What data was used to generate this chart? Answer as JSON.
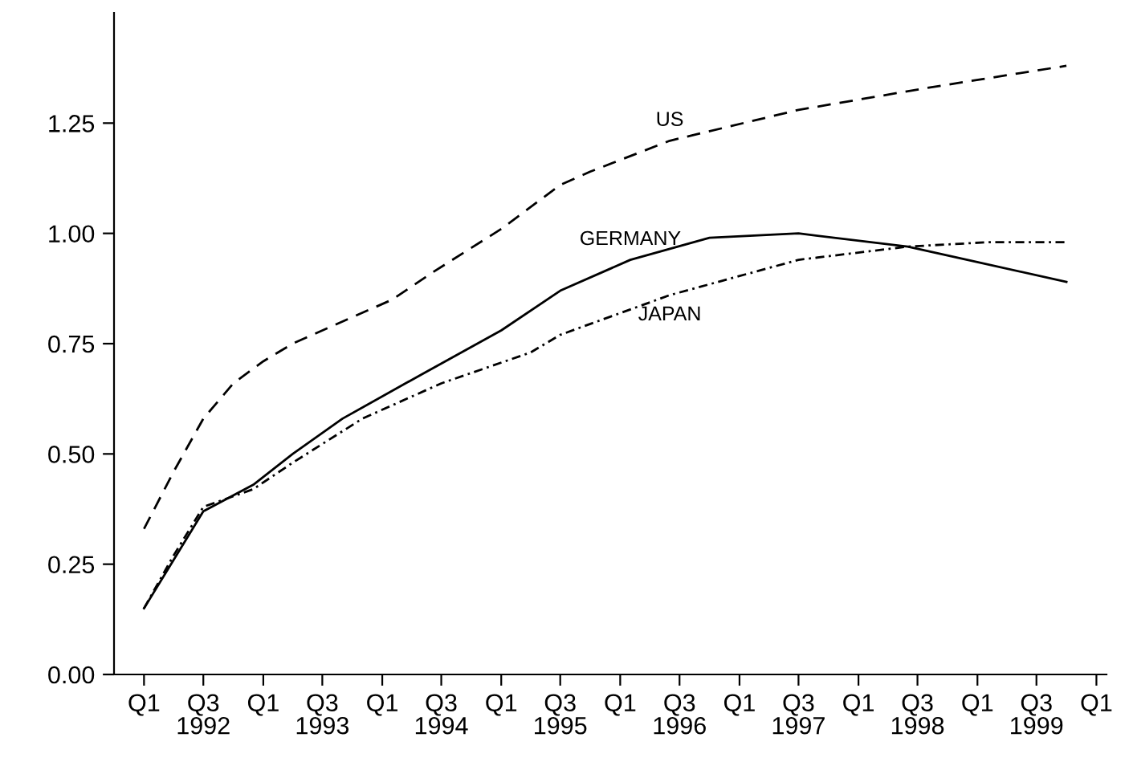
{
  "chart_data": {
    "type": "line",
    "xlim": [
      "1991-10",
      "2000-02"
    ],
    "ylim": [
      0,
      1.5
    ],
    "xticks": [
      {
        "value": "1992-01",
        "label": "Q1"
      },
      {
        "value": "1992-07",
        "label": "Q3\n1992"
      },
      {
        "value": "1993-01",
        "label": "Q1"
      },
      {
        "value": "1993-07",
        "label": "Q3\n1993"
      },
      {
        "value": "1994-01",
        "label": "Q1"
      },
      {
        "value": "1994-07",
        "label": "Q3\n1994"
      },
      {
        "value": "1995-01",
        "label": "Q1"
      },
      {
        "value": "1995-07",
        "label": "Q3\n1995"
      },
      {
        "value": "1996-01",
        "label": "Q1"
      },
      {
        "value": "1996-07",
        "label": "Q3\n1996"
      },
      {
        "value": "1997-01",
        "label": "Q1"
      },
      {
        "value": "1997-07",
        "label": "Q3\n1997"
      },
      {
        "value": "1998-01",
        "label": "Q1"
      },
      {
        "value": "1998-07",
        "label": "Q3\n1998"
      },
      {
        "value": "1999-01",
        "label": "Q1"
      },
      {
        "value": "1999-07",
        "label": "Q3\n1999"
      },
      {
        "value": "2000-01",
        "label": "Q1"
      }
    ],
    "yticks": [
      {
        "value": 0,
        "label": "0.00"
      },
      {
        "value": 0.25,
        "label": "0.25"
      },
      {
        "value": 0.5,
        "label": "0.50"
      },
      {
        "value": 0.75,
        "label": "0.75"
      },
      {
        "value": 1.0,
        "label": "1.00"
      },
      {
        "value": 1.25,
        "label": "1.25"
      }
    ],
    "grid": false,
    "legend": false,
    "series": [
      {
        "name": "US",
        "color": "#000000",
        "line_style": "dashed",
        "x": [
          "1992-01",
          "1992-04",
          "1992-07",
          "1992-10",
          "1993-01",
          "1993-04",
          "1993-08",
          "1994-02",
          "1994-06",
          "1995-01",
          "1995-07",
          "1995-10",
          "1996-06",
          "1997-07",
          "1998-08",
          "1999-10"
        ],
        "values": [
          0.33,
          0.46,
          0.58,
          0.66,
          0.71,
          0.75,
          0.79,
          0.85,
          0.91,
          1.01,
          1.11,
          1.14,
          1.21,
          1.28,
          1.33,
          1.38
        ]
      },
      {
        "name": "GERMANY",
        "color": "#000000",
        "line_style": "solid",
        "x": [
          "1992-01",
          "1992-04",
          "1992-07",
          "1992-12",
          "1993-04",
          "1993-09",
          "1994-05",
          "1995-01",
          "1995-07",
          "1996-02",
          "1996-10",
          "1997-07",
          "1998-06",
          "1998-12",
          "1999-10"
        ],
        "values": [
          0.15,
          0.26,
          0.37,
          0.43,
          0.5,
          0.58,
          0.68,
          0.78,
          0.87,
          0.94,
          0.99,
          1.0,
          0.97,
          0.94,
          0.89
        ]
      },
      {
        "name": "JAPAN",
        "color": "#000000",
        "line_style": "dotted",
        "x": [
          "1992-01",
          "1992-04",
          "1992-07",
          "1992-12",
          "1993-04",
          "1993-11",
          "1994-07",
          "1995-04",
          "1995-07",
          "1996-06",
          "1997-07",
          "1998-06",
          "1999-02",
          "1999-10"
        ],
        "values": [
          0.15,
          0.27,
          0.38,
          0.42,
          0.48,
          0.58,
          0.66,
          0.73,
          0.77,
          0.86,
          0.94,
          0.97,
          0.98,
          0.98
        ]
      }
    ]
  }
}
